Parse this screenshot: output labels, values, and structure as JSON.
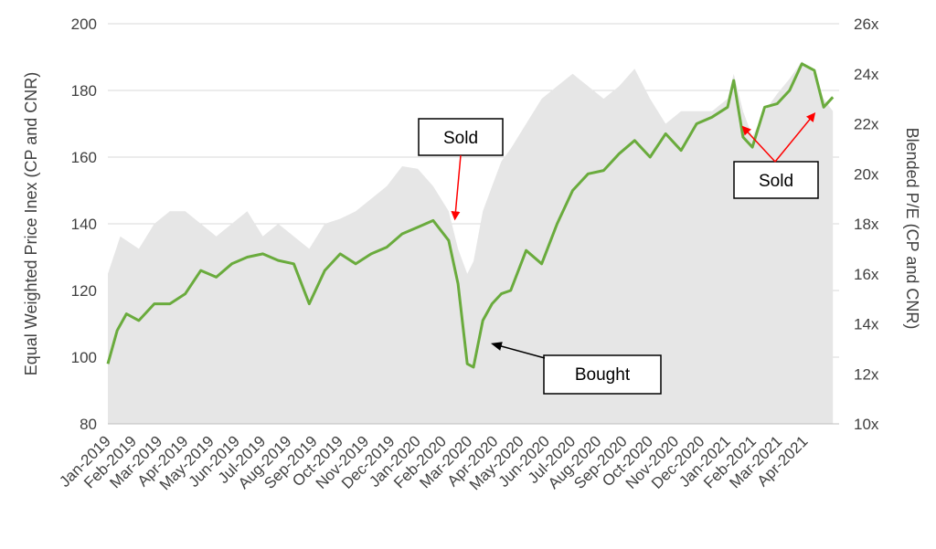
{
  "chart_data": {
    "type": "line",
    "title": "",
    "xlabel": "",
    "ylabel_left": "Equal Weighted Price Inex (CP and CNR)",
    "ylabel_right": "Blended P/E  (CP and CNR)",
    "ylim_left": [
      80,
      200
    ],
    "yticks_left": [
      "80",
      "100",
      "120",
      "140",
      "160",
      "180",
      "200"
    ],
    "ylim_right": [
      10,
      26
    ],
    "yticks_right": [
      "10x",
      "12x",
      "14x",
      "16x",
      "18x",
      "20x",
      "22x",
      "24x",
      "26x"
    ],
    "x_tick_labels": [
      "Jan-2019",
      "Feb-2019",
      "Mar-2019",
      "Apr-2019",
      "May-2019",
      "Jun-2019",
      "Jul-2019",
      "Aug-2019",
      "Sep-2019",
      "Oct-2019",
      "Nov-2019",
      "Dec-2019",
      "Jan-2020",
      "Feb-2020",
      "Mar-2020",
      "Apr-2020",
      "May-2020",
      "Jun-2020",
      "Jul-2020",
      "Aug-2020",
      "Sep-2020",
      "Oct-2020",
      "Nov-2020",
      "Dec-2020",
      "Jan-2021",
      "Feb-2021",
      "Mar-2021",
      "Apr-2021"
    ],
    "grid": true,
    "colors": {
      "price": "#6aab3d",
      "pe_area": "#e6e6e6",
      "grid": "#d9d9d9",
      "arrow_red": "#ff0000",
      "arrow_black": "#000000"
    },
    "series": [
      {
        "axis": "left",
        "style": "line",
        "x": [
          2019.0,
          2019.03,
          2019.06,
          2019.1,
          2019.15,
          2019.2,
          2019.25,
          2019.3,
          2019.35,
          2019.4,
          2019.45,
          2019.5,
          2019.55,
          2019.6,
          2019.65,
          2019.7,
          2019.75,
          2019.8,
          2019.85,
          2019.9,
          2019.95,
          2020.0,
          2020.05,
          2020.1,
          2020.13,
          2020.16,
          2020.18,
          2020.21,
          2020.24,
          2020.27,
          2020.3,
          2020.35,
          2020.4,
          2020.45,
          2020.5,
          2020.55,
          2020.6,
          2020.65,
          2020.7,
          2020.75,
          2020.8,
          2020.85,
          2020.9,
          2020.95,
          2021.0,
          2021.02,
          2021.05,
          2021.08,
          2021.12,
          2021.16,
          2021.2,
          2021.24,
          2021.28,
          2021.31,
          2021.34
        ],
        "values": [
          98,
          108,
          113,
          111,
          116,
          116,
          119,
          126,
          124,
          128,
          130,
          131,
          129,
          128,
          116,
          126,
          131,
          128,
          131,
          133,
          137,
          139,
          141,
          135,
          122,
          98,
          97,
          111,
          116,
          119,
          120,
          132,
          128,
          140,
          150,
          155,
          156,
          161,
          165,
          160,
          167,
          162,
          170,
          172,
          175,
          183,
          166,
          163,
          175,
          176,
          180,
          188,
          186,
          175,
          178
        ]
      },
      {
        "axis": "right",
        "style": "area",
        "x": [
          2019.0,
          2019.04,
          2019.1,
          2019.15,
          2019.2,
          2019.25,
          2019.3,
          2019.35,
          2019.4,
          2019.45,
          2019.5,
          2019.55,
          2019.6,
          2019.65,
          2019.7,
          2019.75,
          2019.8,
          2019.85,
          2019.9,
          2019.95,
          2020.0,
          2020.05,
          2020.1,
          2020.13,
          2020.16,
          2020.18,
          2020.21,
          2020.24,
          2020.27,
          2020.3,
          2020.35,
          2020.4,
          2020.45,
          2020.5,
          2020.55,
          2020.6,
          2020.65,
          2020.7,
          2020.75,
          2020.8,
          2020.85,
          2020.9,
          2020.95,
          2021.0,
          2021.02,
          2021.05,
          2021.08,
          2021.12,
          2021.16,
          2021.2,
          2021.24,
          2021.28,
          2021.31,
          2021.34
        ],
        "values": [
          16,
          17.5,
          17,
          18,
          18.5,
          18.5,
          18,
          17.5,
          18,
          18.5,
          17.5,
          18,
          17.5,
          17,
          18,
          18.2,
          18.5,
          19,
          19.5,
          20.3,
          20.2,
          19.5,
          18.5,
          17,
          16,
          16.5,
          18.5,
          19.5,
          20.5,
          21,
          22,
          23,
          23.5,
          24,
          23.5,
          23,
          23.5,
          24.2,
          23,
          22,
          22.5,
          22.5,
          22.5,
          23,
          24,
          22.5,
          21.5,
          22.5,
          23.2,
          23.8,
          24.5,
          24,
          23,
          22.5
        ]
      }
    ],
    "annotations": [
      {
        "text": "Sold",
        "box": "top",
        "target_x": 2020.12,
        "target_y": 141,
        "arrow": "red"
      },
      {
        "text": "Bought",
        "box": "bottom",
        "target_x": 2020.23,
        "target_y": 104,
        "arrow": "black"
      },
      {
        "text": "Sold",
        "box": "right",
        "targets": [
          [
            2021.05,
            169
          ],
          [
            2021.28,
            173
          ]
        ],
        "arrow": "red"
      }
    ]
  }
}
